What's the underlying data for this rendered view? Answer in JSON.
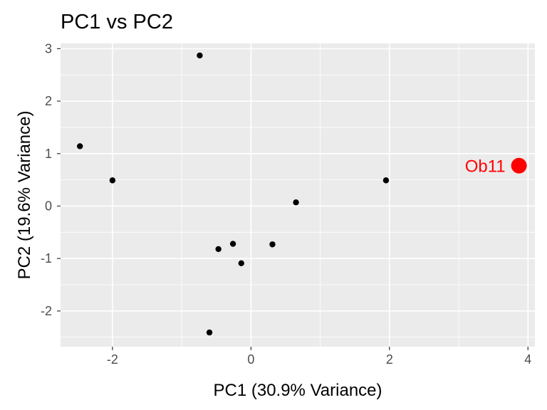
{
  "chart_data": {
    "type": "scatter",
    "title": "PC1 vs PC2",
    "xlabel": "PC1 (30.9% Variance)",
    "ylabel": "PC2 (19.6% Variance)",
    "xlim": [
      -2.75,
      4.1
    ],
    "ylim": [
      -2.68,
      3.1
    ],
    "xticks": [
      -2,
      0,
      2,
      4
    ],
    "yticks": [
      -2,
      -1,
      0,
      1,
      2,
      3
    ],
    "grid": true,
    "legend": "none",
    "colors": {
      "panel": "#ebebeb",
      "grid": "#ffffff",
      "point": "#000000",
      "highlight": "#ff0000"
    },
    "points": [
      {
        "x": -2.47,
        "y": 1.14
      },
      {
        "x": -2.0,
        "y": 0.49
      },
      {
        "x": -0.74,
        "y": 2.87
      },
      {
        "x": -0.47,
        "y": -0.82
      },
      {
        "x": -0.26,
        "y": -0.72
      },
      {
        "x": -0.14,
        "y": -1.09
      },
      {
        "x": -0.6,
        "y": -2.41
      },
      {
        "x": 0.31,
        "y": -0.73
      },
      {
        "x": 0.65,
        "y": 0.07
      },
      {
        "x": 1.95,
        "y": 0.49
      }
    ],
    "highlight": {
      "x": 3.87,
      "y": 0.77,
      "label": "Ob11"
    }
  }
}
